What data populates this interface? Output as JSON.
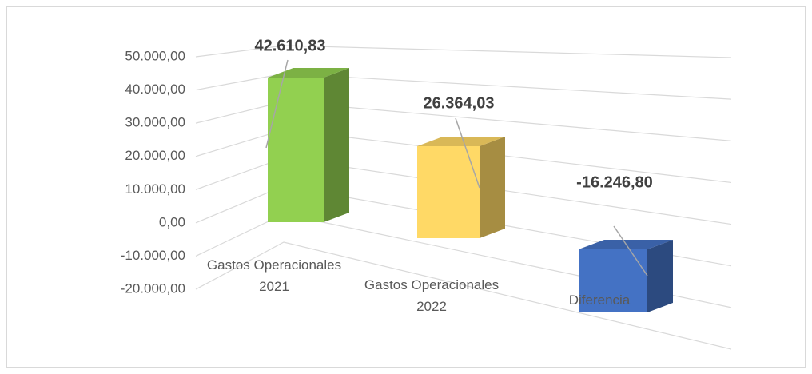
{
  "chart_data": {
    "type": "bar3d",
    "categories": [
      "Gastos Operacionales 2021",
      "Gastos Operacionales 2022",
      "Diferencia"
    ],
    "values": [
      42610.83,
      26364.03,
      -16246.8
    ],
    "value_labels": [
      "42.610,83",
      "26.364,03",
      "-16.246,80"
    ],
    "colors": [
      "#92d050",
      "#ffd966",
      "#4472c4"
    ],
    "ylim": [
      -20000,
      50000
    ],
    "yticks": [
      {
        "value": -20000,
        "label": "-20.000,00"
      },
      {
        "value": -10000,
        "label": "-10.000,00"
      },
      {
        "value": 0,
        "label": "0,00"
      },
      {
        "value": 10000,
        "label": "10.000,00"
      },
      {
        "value": 20000,
        "label": "20.000,00"
      },
      {
        "value": 30000,
        "label": "30.000,00"
      },
      {
        "value": 40000,
        "label": "40.000,00"
      },
      {
        "value": 50000,
        "label": "50.000,00"
      }
    ],
    "grid": true
  }
}
